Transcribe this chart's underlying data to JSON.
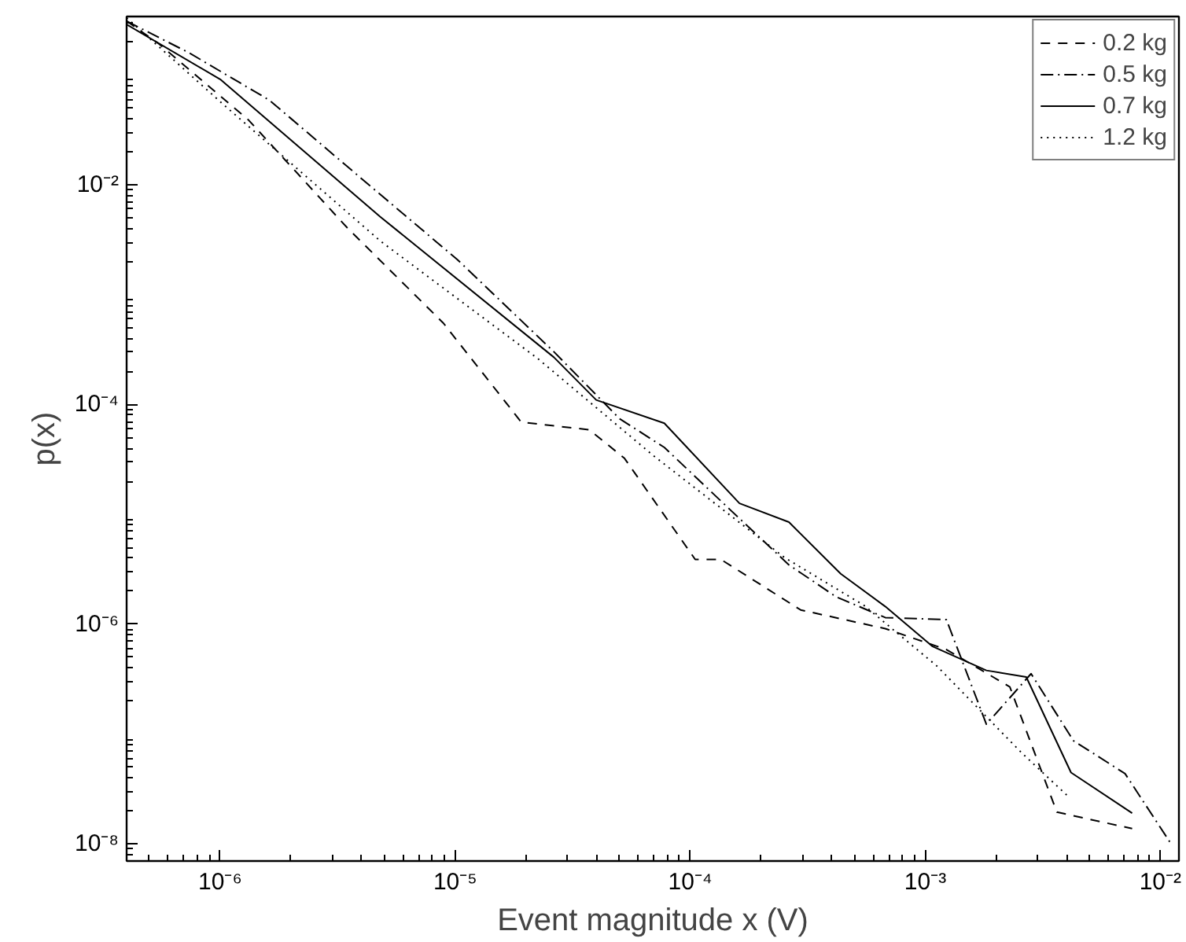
{
  "chart_data": {
    "type": "line",
    "xlabel": "Event magnitude x (V)",
    "ylabel": "p(x)",
    "log": "xy",
    "grid": false,
    "legend": "top right",
    "marker": "none",
    "xlim": [
      4e-07,
      0.012
    ],
    "ylim": [
      7e-09,
      0.34
    ],
    "xticks": [
      {
        "value": 1e-06,
        "label": "10⁻⁶"
      },
      {
        "value": 1e-05,
        "label": "10⁻⁵"
      },
      {
        "value": 0.0001,
        "label": "10⁻⁴"
      },
      {
        "value": 0.001,
        "label": "10⁻³"
      },
      {
        "value": 0.01,
        "label": "10⁻²"
      }
    ],
    "yticks": [
      {
        "value": 1e-08,
        "label": "10⁻⁸"
      },
      {
        "value": 1e-06,
        "label": "10⁻⁶"
      },
      {
        "value": 0.0001,
        "label": "10⁻⁴"
      },
      {
        "value": 0.01,
        "label": "10⁻²"
      }
    ],
    "series": [
      {
        "name": "0.2 kg",
        "color": "#000000",
        "line_style": "dashed",
        "x": [
          4e-07,
          5.5e-07,
          1.32e-06,
          3.47e-06,
          8.91e-06,
          1.91e-05,
          3.72e-05,
          5.25e-05,
          0.000105,
          0.000135,
          0.000295,
          0.000676,
          0.00123,
          0.00229,
          0.00363,
          0.00759
        ],
        "values": [
          0.309,
          0.191,
          0.0389,
          0.00407,
          0.00055,
          6.92e-05,
          5.89e-05,
          3.24e-05,
          3.89e-06,
          3.89e-06,
          1.35e-06,
          9.12e-07,
          5.89e-07,
          2.69e-07,
          1.95e-08,
          1.38e-08
        ]
      },
      {
        "name": "0.5 kg",
        "color": "#000000",
        "line_style": "dashdot",
        "x": [
          4e-07,
          7.41e-07,
          1.62e-06,
          4.07e-06,
          1.02e-05,
          2.63e-05,
          5.01e-05,
          7.76e-05,
          0.000148,
          0.000263,
          0.000417,
          0.000676,
          0.00123,
          0.00182,
          0.00282,
          0.00427,
          0.00708,
          0.0112
        ],
        "values": [
          0.309,
          0.158,
          0.0589,
          0.011,
          0.00209,
          0.000302,
          7.41e-05,
          4.07e-05,
          1.1e-05,
          3.47e-06,
          1.78e-06,
          1.15e-06,
          1.1e-06,
          1.23e-07,
          3.55e-07,
          8.71e-08,
          4.37e-08,
          9.77e-09
        ]
      },
      {
        "name": "0.7 kg",
        "color": "#000000",
        "line_style": "solid",
        "x": [
          4e-07,
          1e-06,
          4.79e-06,
          2.63e-05,
          3.98e-05,
          7.76e-05,
          0.000162,
          0.000263,
          0.000437,
          0.000676,
          0.00107,
          0.00182,
          0.00269,
          0.00417,
          0.00759
        ],
        "values": [
          0.288,
          0.0912,
          0.00513,
          0.000269,
          0.00011,
          6.76e-05,
          1.26e-05,
          8.51e-06,
          2.88e-06,
          1.45e-06,
          6.31e-07,
          3.8e-07,
          3.31e-07,
          4.47e-08,
          1.91e-08
        ]
      },
      {
        "name": "1.2 kg",
        "color": "#000000",
        "line_style": "dotted",
        "x": [
          4e-07,
          1.02e-06,
          4.79e-06,
          2.24e-05,
          6.92e-05,
          0.000251,
          0.00055,
          0.00112,
          0.00257,
          0.00407
        ],
        "values": [
          0.331,
          0.055,
          0.00309,
          0.000263,
          3.47e-05,
          4.07e-06,
          1.48e-06,
          4.17e-07,
          6.76e-08,
          2.69e-08
        ]
      }
    ]
  }
}
